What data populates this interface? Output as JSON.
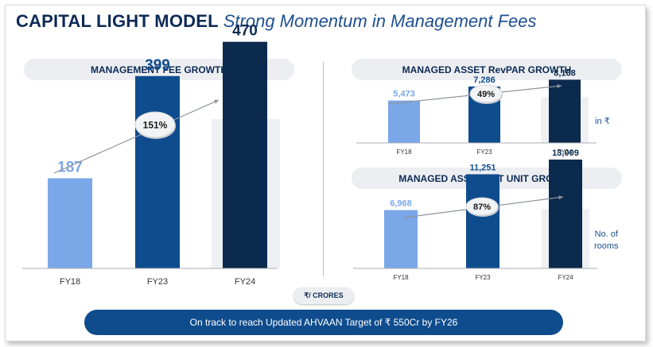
{
  "slide": {
    "title_main": "CAPITAL LIGHT MODEL",
    "title_sub": "Strong Momentum in Management Fees",
    "units_label": "₹/ CRORES",
    "banner_text": "On track to reach Updated AHVAAN Target of ₹ 550Cr by FY26"
  },
  "colors": {
    "fy18": "#7aa7e8",
    "fy23": "#0f4c8e",
    "fy24": "#0b2a4d",
    "highlight_bg": "#eef0f3"
  },
  "chart_data": [
    {
      "type": "bar",
      "title": "MANAGEMENT FEE GROWTH",
      "categories": [
        "FY18",
        "FY23",
        "FY24"
      ],
      "values": [
        187,
        399,
        470
      ],
      "value_labels": [
        "187",
        "399",
        "470"
      ],
      "growth_label": "151%",
      "unit_note": "",
      "highlighted_category": "FY24",
      "ylim": [
        0,
        560
      ],
      "grid": false
    },
    {
      "type": "bar",
      "title": "MANAGED ASSET RevPAR GROWTH",
      "categories": [
        "FY18",
        "FY23",
        "FY24"
      ],
      "values": [
        5473,
        7286,
        8168
      ],
      "value_labels": [
        "5,473",
        "7,286",
        "8,168"
      ],
      "growth_label": "49%",
      "unit_note": "in ₹",
      "highlighted_category": "FY24",
      "ylim": [
        0,
        20000
      ],
      "grid": false
    },
    {
      "type": "bar",
      "title": "MANAGED ASSET NET UNIT GROWTH",
      "categories": [
        "FY18",
        "FY23",
        "FY24"
      ],
      "values": [
        6968,
        11251,
        13009
      ],
      "value_labels": [
        "6,968",
        "11,251",
        "13,009"
      ],
      "growth_label": "87%",
      "unit_note": "No. of\nrooms",
      "highlighted_category": "FY24",
      "ylim": [
        0,
        28000
      ],
      "grid": false
    }
  ]
}
